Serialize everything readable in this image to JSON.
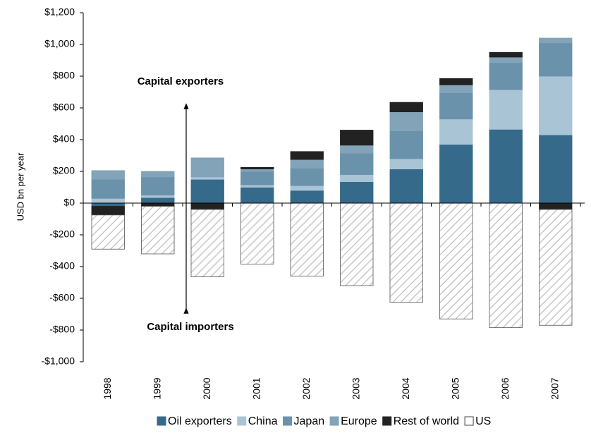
{
  "chart_data": {
    "type": "stacked-bar",
    "y_label": "USD bn per year",
    "annotations": [
      "Capital exporters",
      "Capital importers"
    ],
    "categories": [
      "1998",
      "1999",
      "2000",
      "2001",
      "2002",
      "2003",
      "2004",
      "2005",
      "2006",
      "2007"
    ],
    "series": [
      {
        "name": "Oil exporters",
        "color": "#366a8a",
        "values": [
          -20,
          35,
          150,
          100,
          80,
          135,
          215,
          370,
          465,
          430
        ]
      },
      {
        "name": "China",
        "color": "#a9c4d5",
        "values": [
          30,
          15,
          15,
          15,
          30,
          45,
          65,
          160,
          250,
          370
        ]
      },
      {
        "name": "Japan",
        "color": "#6b92ab",
        "values": [
          120,
          115,
          0,
          85,
          110,
          135,
          175,
          165,
          170,
          210
        ]
      },
      {
        "name": "Europe",
        "color": "#82a3b8",
        "values": [
          55,
          35,
          120,
          15,
          55,
          50,
          120,
          50,
          35,
          30
        ]
      },
      {
        "name": "Rest of world",
        "color": "#222222",
        "values": [
          -55,
          -20,
          -40,
          10,
          50,
          95,
          60,
          40,
          30,
          -40
        ]
      },
      {
        "name": "US",
        "color": "#ffffff",
        "pattern": "hatch",
        "values": [
          -215,
          -300,
          -425,
          -385,
          -460,
          -520,
          -625,
          -730,
          -785,
          -730
        ]
      }
    ],
    "ylim": [
      -1000,
      1200
    ],
    "yticks": [
      {
        "value": -1000,
        "label": "-$1,000"
      },
      {
        "value": -800,
        "label": "-$800"
      },
      {
        "value": -600,
        "label": "-$600"
      },
      {
        "value": -400,
        "label": "-$400"
      },
      {
        "value": -200,
        "label": "-$200"
      },
      {
        "value": 0,
        "label": "$0"
      },
      {
        "value": 200,
        "label": "$200"
      },
      {
        "value": 400,
        "label": "$400"
      },
      {
        "value": 600,
        "label": "$600"
      },
      {
        "value": 800,
        "label": "$800"
      },
      {
        "value": 1000,
        "label": "$1,000"
      },
      {
        "value": 1200,
        "label": "$1,200"
      }
    ]
  }
}
